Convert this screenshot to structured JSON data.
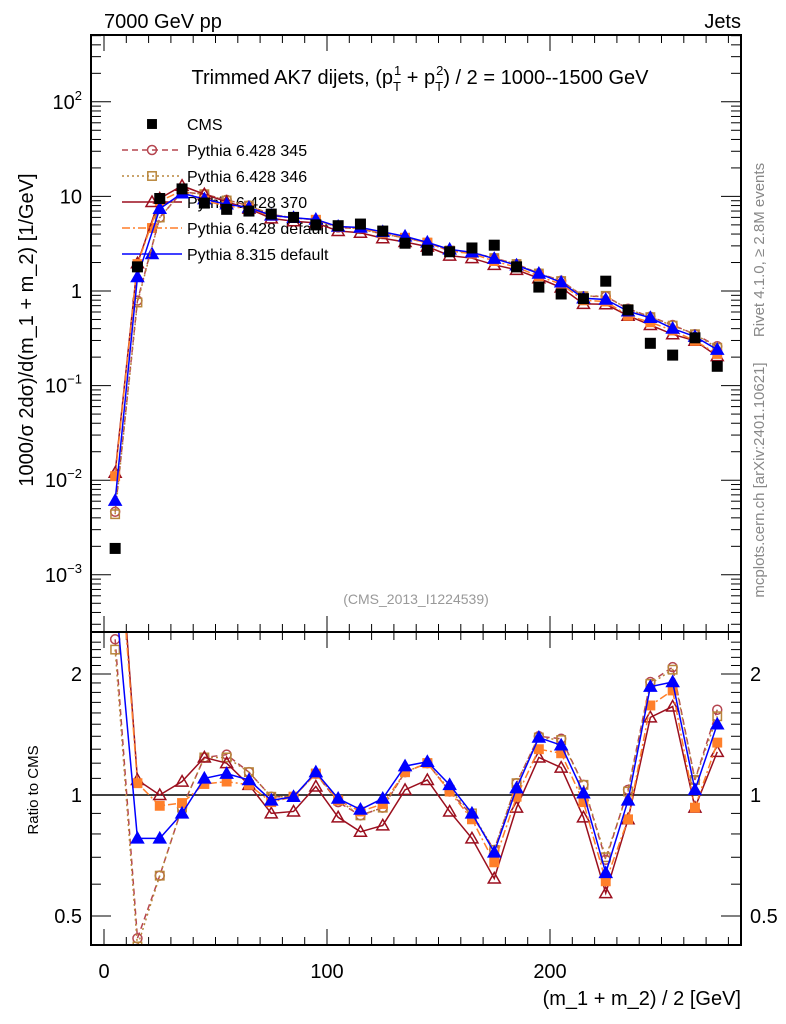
{
  "header": {
    "left": "7000 GeV pp",
    "right": "Jets"
  },
  "side_texts": {
    "rivet": "Rivet 4.1.0, ≥ 2.8M events",
    "mcplots": "mcplots.cern.ch [arXiv:2401.10621]"
  },
  "title_parts": {
    "a": "Trimmed AK7 dijets, (p",
    "sub1": "T",
    "sup1": "1",
    "b": " + p",
    "sub2": "T",
    "sup2": "2",
    "c": ") / 2 = 1000--1500 GeV"
  },
  "analysis_id": "(CMS_2013_I1224539)",
  "chart_data": {
    "type": "scatter",
    "xlabel": "(m_1 + m_2) / 2 [GeV]",
    "ylabel": "1000/σ  2dσ)/d(m_1 + m_2) [1/GeV]",
    "ratio_ylabel": "Ratio to CMS",
    "xlim": [
      -6,
      286
    ],
    "ylim": [
      0.00025,
      500
    ],
    "ratio_ylim": [
      0.42,
      2.5
    ],
    "yscale": "log",
    "legend_position": "top-left",
    "xticks": [
      {
        "v": 0,
        "label": "0"
      },
      {
        "v": 100,
        "label": "100"
      },
      {
        "v": 200,
        "label": "200"
      }
    ],
    "yticks": [
      {
        "v": 100,
        "base": "10",
        "exp": "2"
      },
      {
        "v": 10,
        "base": "10",
        "exp": ""
      },
      {
        "v": 1,
        "base": "1",
        "exp": ""
      },
      {
        "v": 0.1,
        "base": "10",
        "exp": "−1"
      },
      {
        "v": 0.01,
        "base": "10",
        "exp": "−2"
      },
      {
        "v": 0.001,
        "base": "10",
        "exp": "−3"
      }
    ],
    "ratio_yticks": [
      {
        "v": 2,
        "label": "2"
      },
      {
        "v": 1,
        "label": "1"
      },
      {
        "v": 0.5,
        "label": "0.5"
      }
    ],
    "x": [
      5,
      15,
      25,
      35,
      45,
      55,
      65,
      75,
      85,
      95,
      105,
      115,
      125,
      135,
      145,
      155,
      165,
      175,
      185,
      195,
      205,
      215,
      225,
      235,
      245,
      255,
      265,
      275
    ],
    "data": {
      "name": "CMS",
      "color": "#000000",
      "values": [
        0.0019,
        1.8,
        9.5,
        12,
        8.5,
        7.3,
        7.0,
        6.5,
        6.0,
        5.0,
        4.9,
        5.1,
        4.3,
        3.2,
        2.7,
        2.6,
        2.85,
        3.05,
        1.8,
        1.1,
        0.93,
        0.83,
        1.27,
        0.63,
        0.28,
        0.21,
        0.32,
        0.16
      ]
    },
    "series": [
      {
        "name": "Pythia 6.428 345",
        "color": "#b5454f",
        "marker": "open-circle",
        "line": "dashed",
        "ratio": [
          2.44,
          0.44,
          0.63,
          0.93,
          1.24,
          1.26,
          1.14,
          0.99,
          0.99,
          1.13,
          0.96,
          0.89,
          0.93,
          1.14,
          1.2,
          1.02,
          0.89,
          0.73,
          1.07,
          1.4,
          1.38,
          1.06,
          0.69,
          1.03,
          1.91,
          2.08,
          1.09,
          1.63
        ]
      },
      {
        "name": "Pythia 6.428 346",
        "color": "#b8863b",
        "marker": "open-square",
        "line": "dotted",
        "ratio": [
          2.3,
          0.42,
          0.63,
          0.93,
          1.24,
          1.24,
          1.14,
          0.99,
          0.99,
          1.13,
          0.97,
          0.89,
          0.93,
          1.14,
          1.2,
          1.03,
          0.9,
          0.73,
          1.07,
          1.39,
          1.37,
          1.06,
          0.7,
          1.02,
          1.89,
          2.05,
          1.09,
          1.57
        ]
      },
      {
        "name": "Pythia 6.428 370",
        "color": "#9b0f1e",
        "marker": "open-triangle",
        "line": "solid",
        "ratio": [
          6.3,
          1.09,
          1.0,
          1.08,
          1.24,
          1.2,
          1.06,
          0.9,
          0.91,
          1.05,
          0.88,
          0.81,
          0.84,
          1.03,
          1.09,
          0.91,
          0.78,
          0.62,
          0.93,
          1.24,
          1.17,
          0.88,
          0.57,
          0.87,
          1.56,
          1.66,
          0.93,
          1.28
        ]
      },
      {
        "name": "Pythia 6.428 default",
        "color": "#ff7f2a",
        "marker": "filled-square",
        "line": "dashdot",
        "ratio": [
          5.8,
          1.07,
          0.94,
          0.955,
          1.065,
          1.08,
          1.06,
          0.96,
          0.99,
          1.13,
          0.97,
          0.91,
          0.95,
          1.14,
          1.2,
          1.02,
          0.87,
          0.68,
          0.99,
          1.3,
          1.27,
          0.96,
          0.61,
          0.87,
          1.67,
          1.82,
          0.93,
          1.35
        ]
      },
      {
        "name": "Pythia 8.315 default",
        "color": "#0000ff",
        "marker": "filled-triangle",
        "line": "solid",
        "ratio": [
          3.2,
          0.78,
          0.78,
          0.9,
          1.1,
          1.13,
          1.09,
          0.97,
          0.99,
          1.14,
          0.98,
          0.92,
          0.98,
          1.18,
          1.21,
          1.06,
          0.9,
          0.72,
          1.04,
          1.39,
          1.33,
          1.01,
          0.64,
          0.97,
          1.86,
          1.91,
          1.03,
          1.5
        ]
      }
    ]
  }
}
